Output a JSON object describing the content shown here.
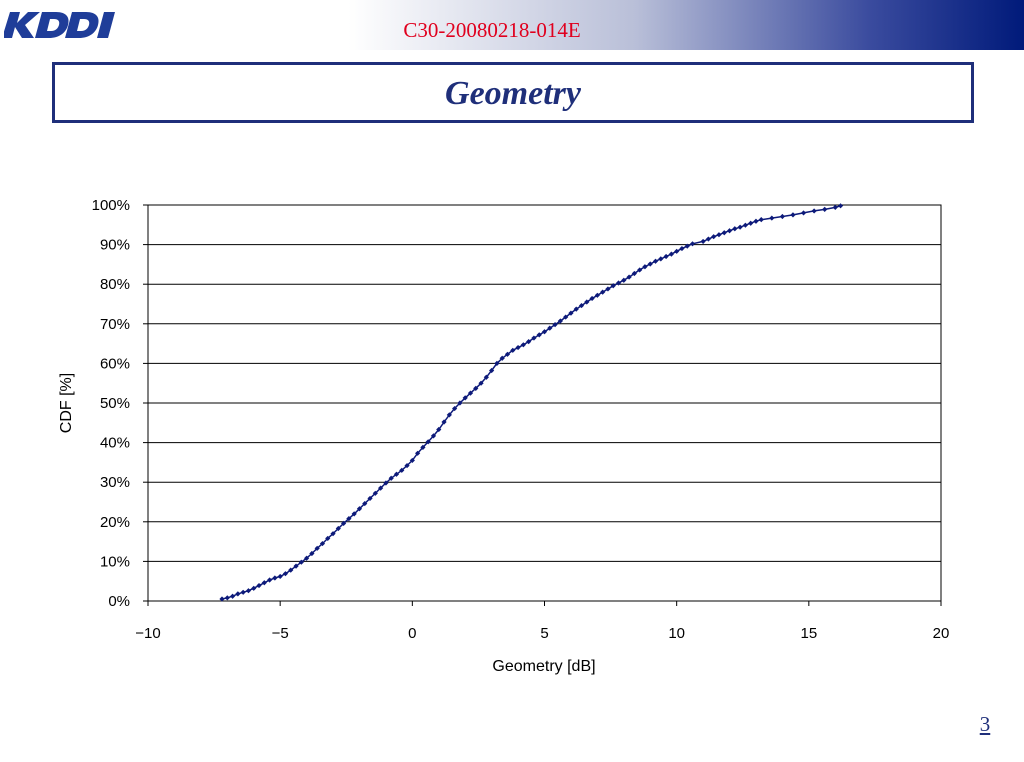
{
  "header": {
    "logo_text": "KDDI",
    "doc_id": "C30-20080218-014E"
  },
  "slide": {
    "title": "Geometry",
    "page_number": "3"
  },
  "colors": {
    "brand_navy": "#1f2f7a",
    "doc_id_red": "#e0001e",
    "series": "#0d1a7a"
  },
  "chart_data": {
    "type": "line",
    "xlabel": "Geometry [dB]",
    "ylabel": "CDF [%]",
    "xlim": [
      -10,
      20
    ],
    "ylim": [
      0,
      100
    ],
    "x_ticks": [
      "−10",
      "−5",
      "0",
      "5",
      "10",
      "15",
      "20"
    ],
    "y_ticks": [
      "0%",
      "10%",
      "20%",
      "30%",
      "40%",
      "50%",
      "60%",
      "70%",
      "80%",
      "90%",
      "100%"
    ],
    "grid": "horizontal",
    "legend": "none",
    "series": [
      {
        "marker": "diamond",
        "points": [
          [
            -7.2,
            0.5
          ],
          [
            -7.0,
            0.8
          ],
          [
            -6.8,
            1.2
          ],
          [
            -6.6,
            1.8
          ],
          [
            -6.4,
            2.2
          ],
          [
            -6.2,
            2.6
          ],
          [
            -6.0,
            3.2
          ],
          [
            -5.8,
            3.9
          ],
          [
            -5.6,
            4.6
          ],
          [
            -5.4,
            5.3
          ],
          [
            -5.2,
            5.8
          ],
          [
            -5.0,
            6.2
          ],
          [
            -4.8,
            6.9
          ],
          [
            -4.6,
            7.8
          ],
          [
            -4.4,
            8.8
          ],
          [
            -4.2,
            9.8
          ],
          [
            -4.0,
            10.8
          ],
          [
            -3.8,
            12.0
          ],
          [
            -3.6,
            13.3
          ],
          [
            -3.4,
            14.5
          ],
          [
            -3.2,
            15.8
          ],
          [
            -3.0,
            17.0
          ],
          [
            -2.8,
            18.3
          ],
          [
            -2.6,
            19.6
          ],
          [
            -2.4,
            20.8
          ],
          [
            -2.2,
            22.0
          ],
          [
            -2.0,
            23.3
          ],
          [
            -1.8,
            24.6
          ],
          [
            -1.6,
            25.9
          ],
          [
            -1.4,
            27.2
          ],
          [
            -1.2,
            28.5
          ],
          [
            -1.0,
            29.8
          ],
          [
            -0.8,
            31.0
          ],
          [
            -0.6,
            32.0
          ],
          [
            -0.4,
            33.0
          ],
          [
            -0.2,
            34.2
          ],
          [
            0.0,
            35.5
          ],
          [
            0.2,
            37.3
          ],
          [
            0.4,
            38.8
          ],
          [
            0.6,
            40.2
          ],
          [
            0.8,
            41.7
          ],
          [
            1.0,
            43.3
          ],
          [
            1.2,
            45.2
          ],
          [
            1.4,
            47.0
          ],
          [
            1.6,
            48.6
          ],
          [
            1.8,
            50.0
          ],
          [
            2.0,
            51.3
          ],
          [
            2.2,
            52.5
          ],
          [
            2.4,
            53.7
          ],
          [
            2.6,
            55.0
          ],
          [
            2.8,
            56.5
          ],
          [
            3.0,
            58.2
          ],
          [
            3.2,
            60.0
          ],
          [
            3.4,
            61.3
          ],
          [
            3.6,
            62.3
          ],
          [
            3.8,
            63.3
          ],
          [
            4.0,
            64.0
          ],
          [
            4.2,
            64.7
          ],
          [
            4.4,
            65.5
          ],
          [
            4.6,
            66.4
          ],
          [
            4.8,
            67.2
          ],
          [
            5.0,
            68.0
          ],
          [
            5.2,
            68.9
          ],
          [
            5.4,
            69.8
          ],
          [
            5.6,
            70.7
          ],
          [
            5.8,
            71.7
          ],
          [
            6.0,
            72.7
          ],
          [
            6.2,
            73.7
          ],
          [
            6.4,
            74.6
          ],
          [
            6.6,
            75.5
          ],
          [
            6.8,
            76.4
          ],
          [
            7.0,
            77.2
          ],
          [
            7.2,
            78.0
          ],
          [
            7.4,
            78.8
          ],
          [
            7.6,
            79.6
          ],
          [
            7.8,
            80.3
          ],
          [
            8.0,
            81.0
          ],
          [
            8.2,
            81.8
          ],
          [
            8.4,
            82.7
          ],
          [
            8.6,
            83.6
          ],
          [
            8.8,
            84.4
          ],
          [
            9.0,
            85.1
          ],
          [
            9.2,
            85.8
          ],
          [
            9.4,
            86.4
          ],
          [
            9.6,
            87.0
          ],
          [
            9.8,
            87.6
          ],
          [
            10.0,
            88.3
          ],
          [
            10.2,
            89.0
          ],
          [
            10.4,
            89.6
          ],
          [
            10.6,
            90.2
          ],
          [
            11.0,
            90.8
          ],
          [
            11.2,
            91.4
          ],
          [
            11.4,
            92.0
          ],
          [
            11.6,
            92.5
          ],
          [
            11.8,
            93.0
          ],
          [
            12.0,
            93.5
          ],
          [
            12.2,
            94.0
          ],
          [
            12.4,
            94.4
          ],
          [
            12.6,
            94.9
          ],
          [
            12.8,
            95.4
          ],
          [
            13.0,
            95.9
          ],
          [
            13.2,
            96.3
          ],
          [
            13.6,
            96.7
          ],
          [
            14.0,
            97.1
          ],
          [
            14.4,
            97.5
          ],
          [
            14.8,
            98.0
          ],
          [
            15.2,
            98.5
          ],
          [
            15.6,
            98.9
          ],
          [
            16.0,
            99.4
          ],
          [
            16.2,
            99.8
          ]
        ]
      }
    ]
  }
}
